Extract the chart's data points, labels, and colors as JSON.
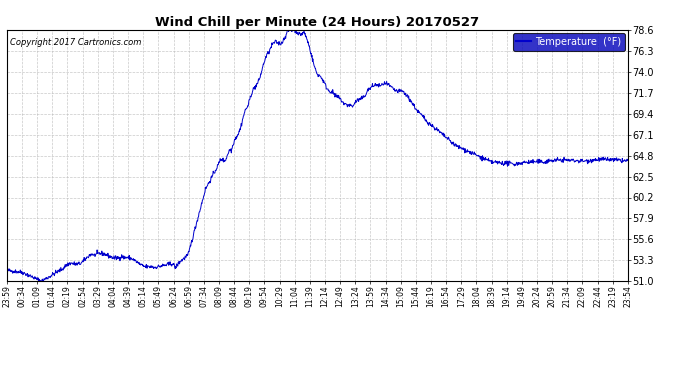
{
  "title": "Wind Chill per Minute (24 Hours) 20170527",
  "copyright": "Copyright 2017 Cartronics.com",
  "legend_label": "Temperature  (°F)",
  "line_color": "#0000cc",
  "background_color": "#ffffff",
  "plot_bg_color": "#ffffff",
  "grid_color": "#bbbbbb",
  "ylim": [
    51.0,
    78.6
  ],
  "yticks": [
    51.0,
    53.3,
    55.6,
    57.9,
    60.2,
    62.5,
    64.8,
    67.1,
    69.4,
    71.7,
    74.0,
    76.3,
    78.6
  ],
  "x_labels": [
    "23:59",
    "00:34",
    "01:09",
    "01:44",
    "02:19",
    "02:54",
    "03:29",
    "04:04",
    "04:39",
    "05:14",
    "05:49",
    "06:24",
    "06:59",
    "07:34",
    "08:09",
    "08:44",
    "09:19",
    "09:54",
    "10:29",
    "11:04",
    "11:39",
    "12:14",
    "12:49",
    "13:24",
    "13:59",
    "14:34",
    "15:09",
    "15:44",
    "16:19",
    "16:54",
    "17:29",
    "18:04",
    "18:39",
    "19:14",
    "19:49",
    "20:24",
    "20:59",
    "21:34",
    "22:09",
    "22:44",
    "23:19",
    "23:54"
  ]
}
